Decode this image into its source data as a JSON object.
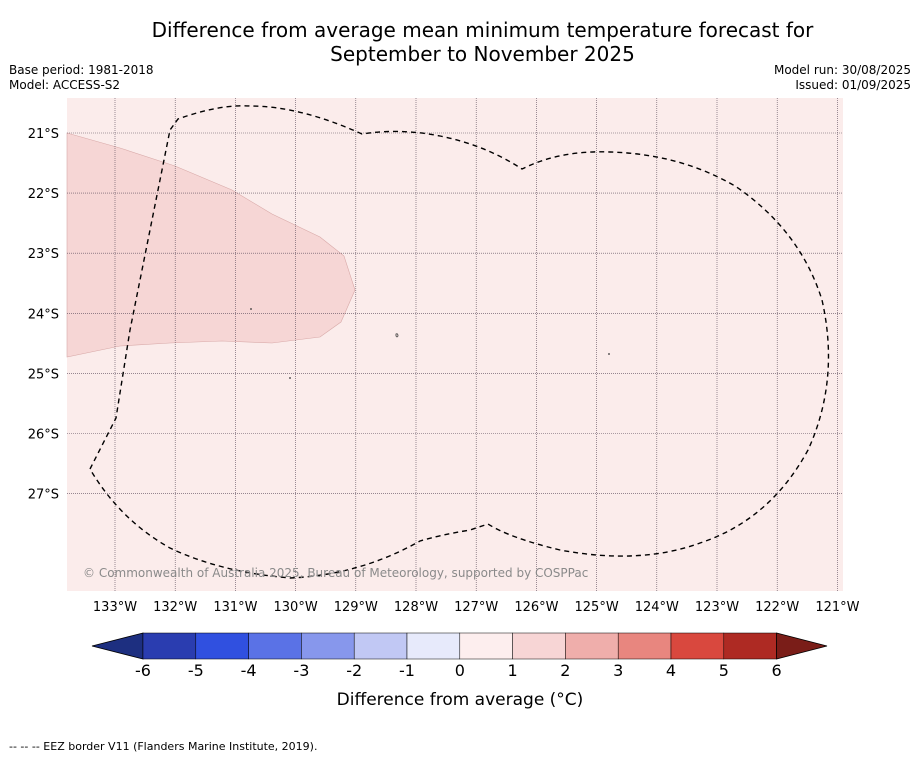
{
  "title_line1": "Difference from average mean minimum temperature forecast for",
  "title_line2": "September to November 2025",
  "base_period": "Base period: 1981-2018",
  "model": "Model: ACCESS-S2",
  "model_run": "Model run: 30/08/2025",
  "issued": "Issued: 01/09/2025",
  "copyright": "© Commonwealth of Australia 2025, Bureau of Meteorology, supported by COSPPac",
  "footer_note": "--  --  -- EEZ border V11 (Flanders Marine Institute, 2019).",
  "lat_labels": [
    "21°S",
    "22°S",
    "23°S",
    "24°S",
    "25°S",
    "26°S",
    "27°S"
  ],
  "lon_labels": [
    "133°W",
    "132°W",
    "131°W",
    "130°W",
    "129°W",
    "128°W",
    "127°W",
    "126°W",
    "125°W",
    "124°W",
    "123°W",
    "122°W",
    "121°W"
  ],
  "colorbar": {
    "label": "Difference from average (°C)",
    "ticks": [
      "-6",
      "-5",
      "-4",
      "-3",
      "-2",
      "-1",
      "0",
      "1",
      "2",
      "3",
      "4",
      "5",
      "6"
    ],
    "colors": [
      "#2a3db0",
      "#3050e0",
      "#5a72e6",
      "#8797ec",
      "#c1c8f4",
      "#e7eafb",
      "#fdeeee",
      "#f7d5d5",
      "#efaeab",
      "#e8867f",
      "#d9483e",
      "#ae2a23"
    ],
    "under_color": "#1d2f80",
    "over_color": "#7a1d18"
  },
  "map_colors": {
    "background": "#fbeceb",
    "warm_region": "#f6d6d5"
  }
}
